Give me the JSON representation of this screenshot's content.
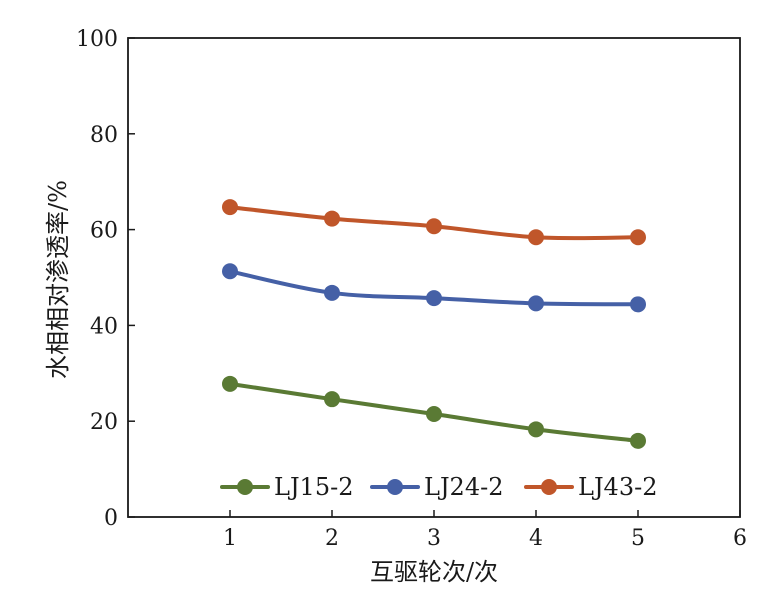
{
  "chart_data": {
    "type": "line",
    "xlabel": "互驱轮次/次",
    "ylabel": "水相相对渗透率/%",
    "xlim": [
      0,
      6
    ],
    "ylim": [
      0,
      100
    ],
    "xticks": [
      1,
      2,
      3,
      4,
      5,
      6
    ],
    "yticks": [
      0,
      20,
      40,
      60,
      80,
      100
    ],
    "grid": false,
    "legend_position": "bottom",
    "x": [
      1,
      2,
      3,
      4,
      5
    ],
    "series": [
      {
        "name": "LJ15-2",
        "color": "#5a7a34",
        "values": [
          27.8,
          24.6,
          21.5,
          18.3,
          15.9
        ]
      },
      {
        "name": "LJ24-2",
        "color": "#4560a6",
        "values": [
          51.3,
          46.8,
          45.7,
          44.6,
          44.4
        ]
      },
      {
        "name": "LJ43-2",
        "color": "#c0562a",
        "values": [
          64.7,
          62.3,
          60.7,
          58.4,
          58.4
        ]
      }
    ]
  }
}
